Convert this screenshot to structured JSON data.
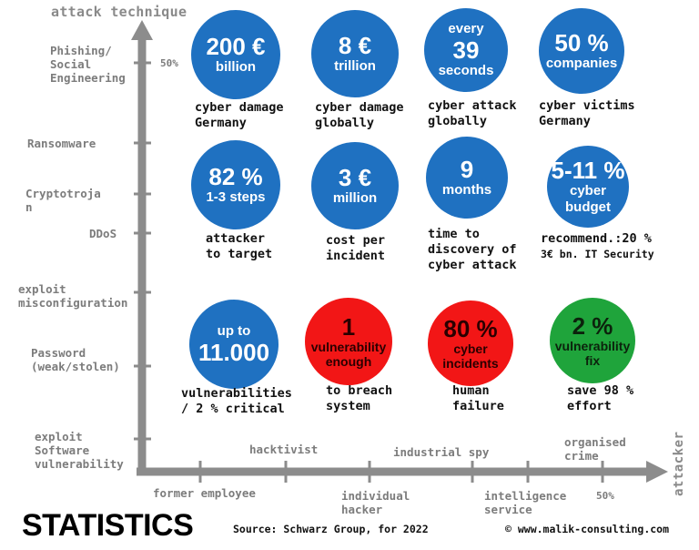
{
  "axes": {
    "y_title": "attack technique",
    "x_title": "attacker",
    "y_percent": "50%",
    "x_percent": "50%",
    "y_labels": [
      "Phishing/\nSocial\nEngineering",
      "Ransomware",
      "Cryptotroja\nn",
      "DDoS",
      "exploit\nmisconfiguration",
      "Password\n(weak/stolen)",
      "exploit\nSoftware\nvulnerability"
    ],
    "x_labels": [
      "former employee",
      "hacktivist",
      "individual\nhacker",
      "industrial spy",
      "intelligence\nservice",
      "organised\ncrime"
    ]
  },
  "stats": [
    {
      "color": "blue",
      "big": "200 €",
      "small": "billion",
      "caption": "cyber damage\nGermany"
    },
    {
      "color": "blue",
      "big": "8 €",
      "small": "trillion",
      "caption": "cyber damage\nglobally"
    },
    {
      "color": "blue",
      "pre": "every",
      "big": "39",
      "small": "seconds",
      "caption": "cyber attack\nglobally"
    },
    {
      "color": "blue",
      "big": "50 %",
      "small": "companies",
      "caption": "cyber victims\nGermany"
    },
    {
      "color": "blue",
      "big": "82 %",
      "small": "1-3 steps",
      "caption": "attacker\nto target"
    },
    {
      "color": "blue",
      "big": "3 €",
      "small": "million",
      "caption": "cost per\nincident"
    },
    {
      "color": "blue",
      "big": "9",
      "small": "months",
      "caption": "time to\ndiscovery of\ncyber attack"
    },
    {
      "color": "blue",
      "big": "5-11 %",
      "small": "cyber\nbudget",
      "caption": "recommend.:20 %",
      "caption2": "3€ bn. IT Security"
    },
    {
      "color": "blue",
      "big": "11.000",
      "pre": "up to",
      "caption": "vulnerabilities\n/ 2 % critical"
    },
    {
      "color": "red",
      "big": "1",
      "small": "vulnerability\nenough",
      "caption": "to breach\nsystem"
    },
    {
      "color": "red",
      "big": "80 %",
      "small": "cyber\nincidents",
      "caption": "human\nfailure"
    },
    {
      "color": "green",
      "big": "2 %",
      "small": "vulnerability\nfix",
      "caption": "save 98 %\neffort"
    }
  ],
  "footer": {
    "title": "STATISTICS",
    "source": "Source: Schwarz Group, for 2022",
    "website": "© www.malik-consulting.com"
  }
}
